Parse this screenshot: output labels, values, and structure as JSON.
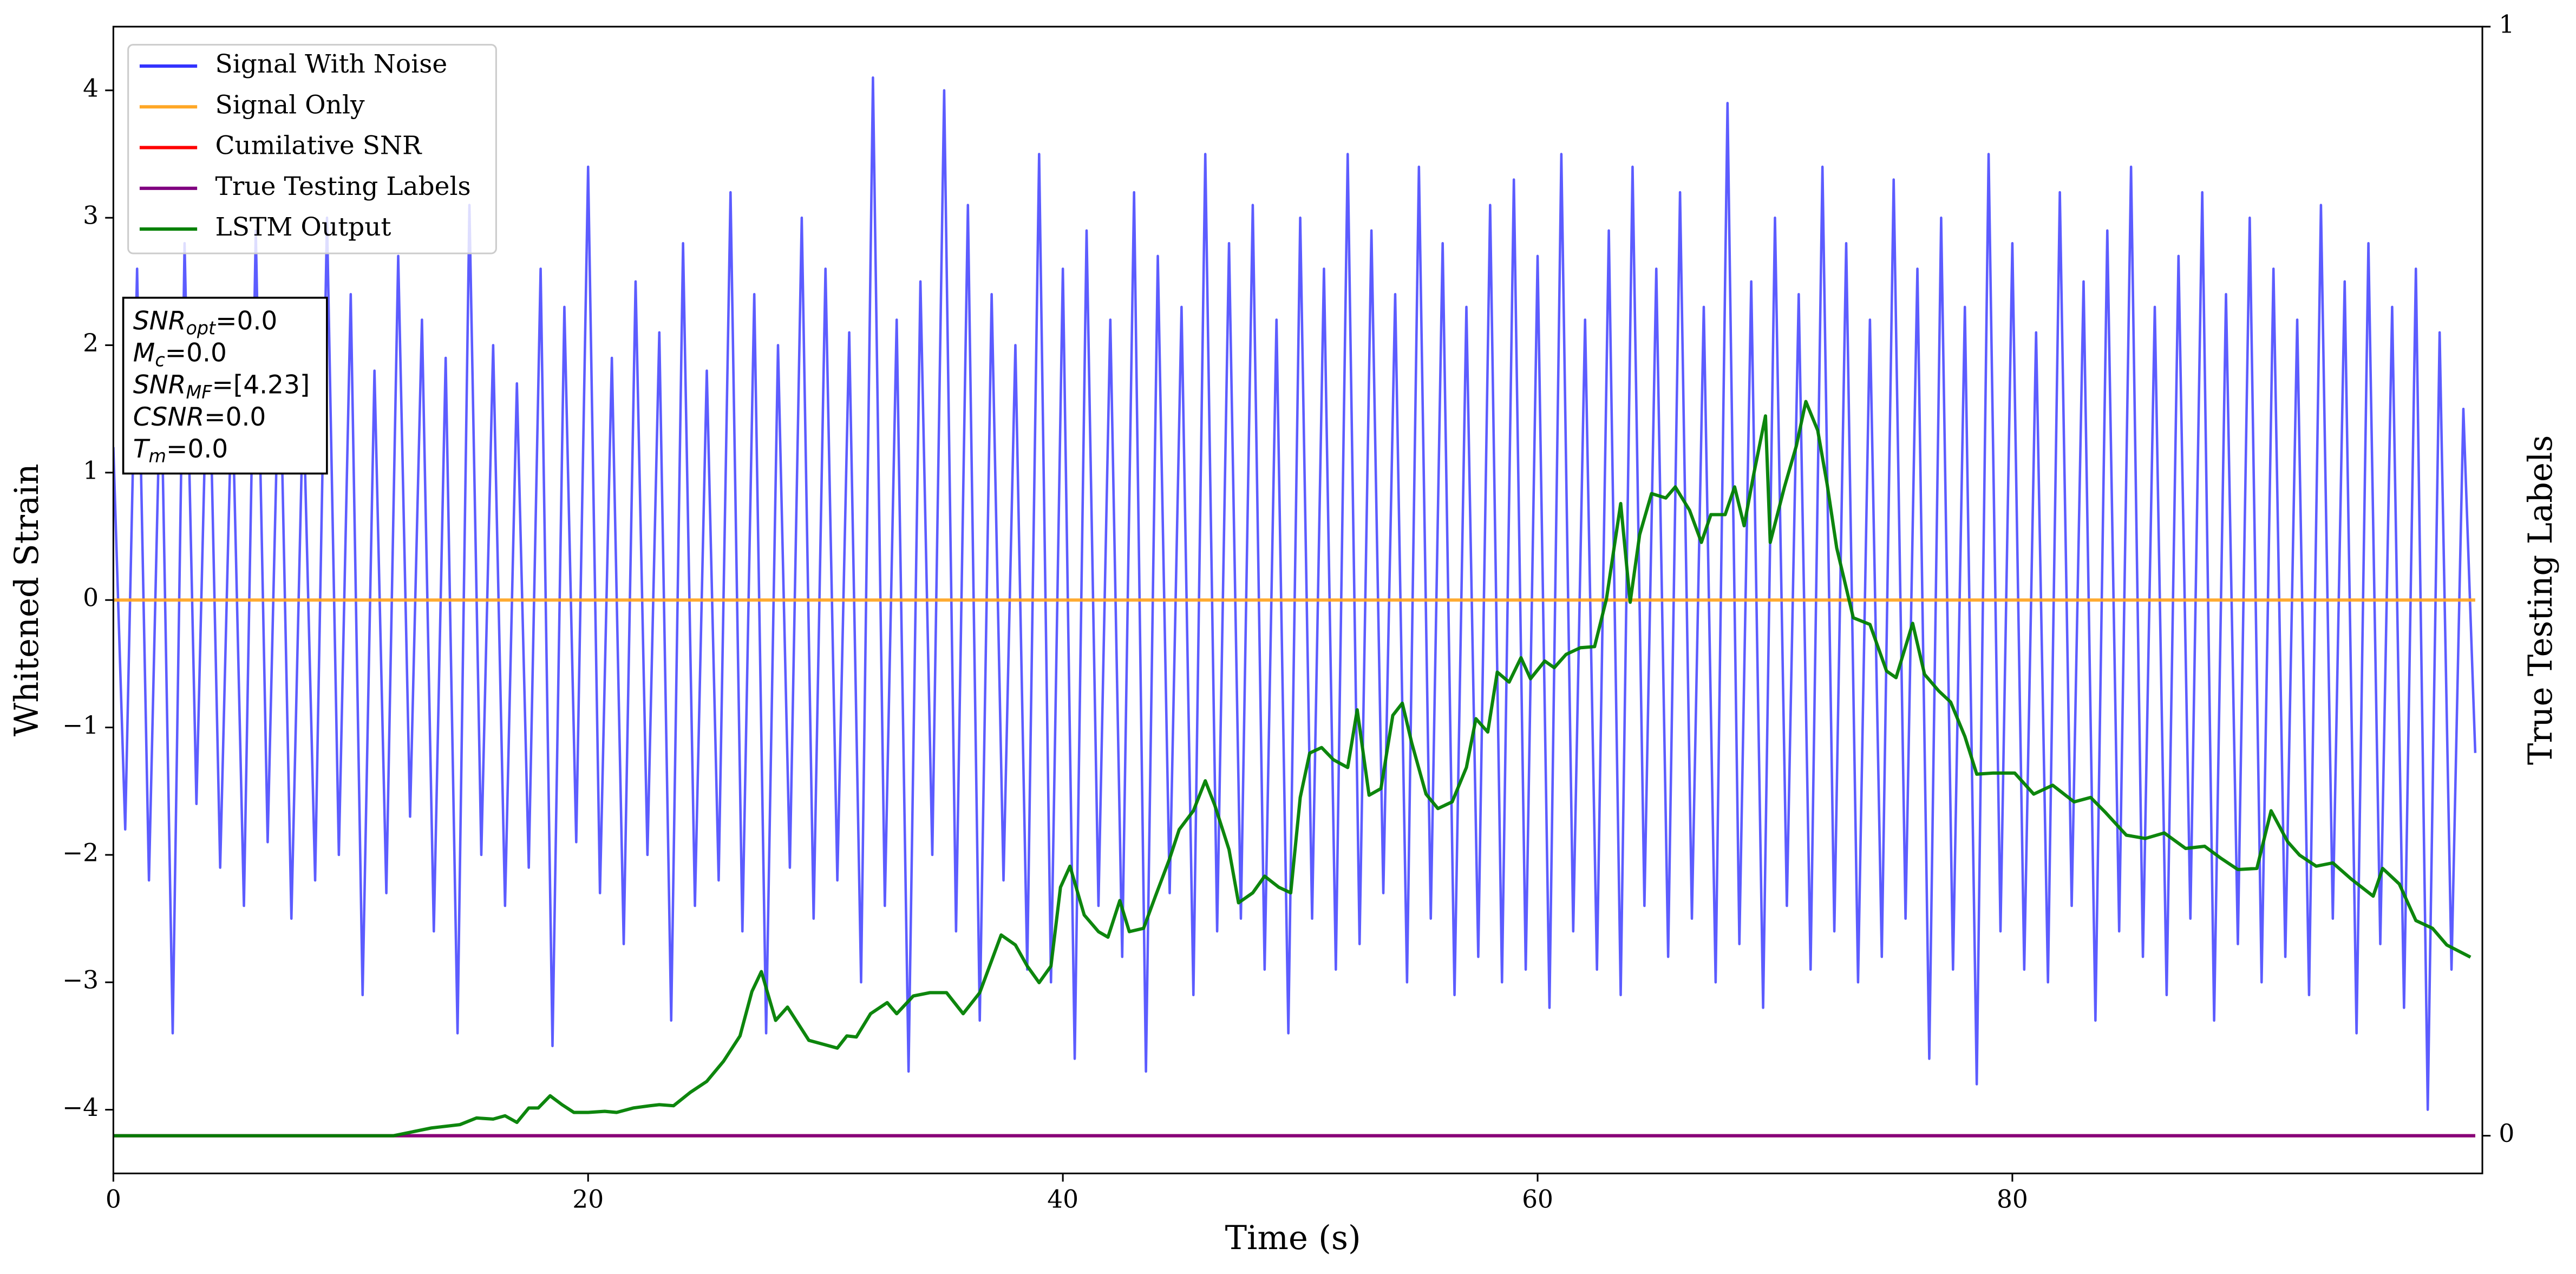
{
  "chart_data": {
    "type": "line",
    "xlabel": "Time (s)",
    "ylabel": "Whitened Strain",
    "y2label": "True Testing Labels",
    "xlim": [
      0,
      99.8
    ],
    "xticks": [
      0,
      20,
      40,
      60,
      80
    ],
    "ylim": [
      -4.5,
      4.5
    ],
    "yticks": [
      {
        "value": -4,
        "label": "−4"
      },
      {
        "value": -3,
        "label": "−3"
      },
      {
        "value": -2,
        "label": "−2"
      },
      {
        "value": -1,
        "label": "−1"
      },
      0,
      1,
      2,
      3,
      4
    ],
    "y2lim": [
      -0.034,
      1
    ],
    "y2ticks": [
      0,
      1
    ],
    "legend": "upper left",
    "series": [
      {
        "name": "Signal With Noise",
        "color": "#3333ff",
        "x": [
          0,
          0.5,
          1,
          1.5,
          2,
          2.5,
          3,
          3.5,
          4,
          4.5,
          5,
          5.5,
          6,
          6.5,
          7,
          7.5,
          8,
          8.5,
          9,
          9.5,
          10,
          10.5,
          11,
          11.5,
          12,
          12.5,
          13,
          13.5,
          14,
          14.5,
          15,
          15.5,
          16,
          16.5,
          17,
          17.5,
          18,
          18.5,
          19,
          19.5,
          20,
          20.5,
          21,
          21.5,
          22,
          22.5,
          23,
          23.5,
          24,
          24.5,
          25,
          25.5,
          26,
          26.5,
          27,
          27.5,
          28,
          28.5,
          29,
          29.5,
          30,
          30.5,
          31,
          31.5,
          32,
          32.5,
          33,
          33.5,
          34,
          34.5,
          35,
          35.5,
          36,
          36.5,
          37,
          37.5,
          38,
          38.5,
          39,
          39.5,
          40,
          40.5,
          41,
          41.5,
          42,
          42.5,
          43,
          43.5,
          44,
          44.5,
          45,
          45.5,
          46,
          46.5,
          47,
          47.5,
          48,
          48.5,
          49,
          49.5,
          50,
          50.5,
          51,
          51.5,
          52,
          52.5,
          53,
          53.5,
          54,
          54.5,
          55,
          55.5,
          56,
          56.5,
          57,
          57.5,
          58,
          58.5,
          59,
          59.5,
          60,
          60.5,
          61,
          61.5,
          62,
          62.5,
          63,
          63.5,
          64,
          64.5,
          65,
          65.5,
          66,
          66.5,
          67,
          67.5,
          68,
          68.5,
          69,
          69.5,
          70,
          70.5,
          71,
          71.5,
          72,
          72.5,
          73,
          73.5,
          74,
          74.5,
          75,
          75.5,
          76,
          76.5,
          77,
          77.5,
          78,
          78.5,
          79,
          79.5,
          80,
          80.5,
          81,
          81.5,
          82,
          82.5,
          83,
          83.5,
          84,
          84.5,
          85,
          85.5,
          86,
          86.5,
          87,
          87.5,
          88,
          88.5,
          89,
          89.5,
          90,
          90.5,
          91,
          91.5,
          92,
          92.5,
          93,
          93.5,
          94,
          94.5,
          95,
          95.5,
          96,
          96.5,
          97,
          97.5,
          98,
          98.5,
          99,
          99.5
        ],
        "values": [
          1.2,
          -1.8,
          2.6,
          -2.2,
          1.9,
          -3.4,
          2.8,
          -1.6,
          2.3,
          -2.1,
          1.7,
          -2.4,
          2.9,
          -1.9,
          2.1,
          -2.5,
          1.6,
          -2.2,
          3.0,
          -2.0,
          2.4,
          -3.1,
          1.8,
          -2.3,
          2.7,
          -1.7,
          2.2,
          -2.6,
          1.9,
          -3.4,
          3.1,
          -2.0,
          2.0,
          -2.4,
          1.7,
          -2.1,
          2.6,
          -3.5,
          2.3,
          -1.9,
          3.4,
          -2.3,
          1.9,
          -2.7,
          2.5,
          -2.0,
          2.1,
          -3.3,
          2.8,
          -2.4,
          1.8,
          -2.2,
          3.2,
          -2.6,
          2.4,
          -3.4,
          2.0,
          -2.1,
          3.0,
          -2.5,
          2.6,
          -2.2,
          2.1,
          -3.0,
          4.1,
          -2.4,
          2.2,
          -3.7,
          2.5,
          -2.0,
          4.0,
          -2.6,
          3.1,
          -3.3,
          2.4,
          -2.2,
          2.0,
          -2.9,
          3.5,
          -3.0,
          2.6,
          -3.6,
          2.9,
          -2.4,
          2.2,
          -2.8,
          3.2,
          -3.7,
          2.7,
          -2.3,
          2.3,
          -3.1,
          3.5,
          -2.6,
          2.8,
          -2.5,
          3.1,
          -2.9,
          2.2,
          -3.4,
          3.0,
          -2.5,
          2.6,
          -2.9,
          3.5,
          -2.7,
          2.9,
          -2.3,
          2.4,
          -3.0,
          3.4,
          -2.5,
          2.8,
          -3.1,
          2.3,
          -2.8,
          3.1,
          -3.0,
          3.3,
          -2.9,
          2.7,
          -3.2,
          3.5,
          -2.6,
          2.2,
          -2.9,
          2.9,
          -3.1,
          3.4,
          -2.4,
          2.6,
          -2.8,
          3.2,
          -2.5,
          2.3,
          -3.0,
          3.9,
          -2.7,
          2.5,
          -3.2,
          3.0,
          -2.4,
          2.4,
          -2.9,
          3.4,
          -2.6,
          2.8,
          -3.0,
          2.2,
          -2.8,
          3.3,
          -2.5,
          2.6,
          -3.6,
          3.0,
          -2.9,
          2.3,
          -3.8,
          3.5,
          -2.6,
          2.8,
          -2.9,
          2.1,
          -3.0,
          3.2,
          -2.4,
          2.5,
          -3.3,
          2.9,
          -2.6,
          3.4,
          -2.8,
          2.3,
          -3.1,
          2.7,
          -2.5,
          3.2,
          -3.3,
          2.4,
          -2.7,
          3.0,
          -3.0,
          2.6,
          -2.8,
          2.2,
          -3.1,
          3.1,
          -2.5,
          2.5,
          -3.4,
          2.8,
          -2.7,
          2.3,
          -3.2,
          2.6,
          -4.0,
          2.1,
          -2.9,
          1.5,
          -1.2
        ]
      },
      {
        "name": "Signal Only",
        "color": "#ffa726",
        "x": [
          0,
          99.5
        ],
        "values": [
          0,
          0
        ]
      },
      {
        "name": "Cumilative SNR",
        "color": "#ff0000",
        "axis": "y2",
        "x": [
          0,
          99.5
        ],
        "values": [
          0,
          0
        ]
      },
      {
        "name": "True Testing Labels",
        "color": "#800080",
        "axis": "y2",
        "x": [
          0,
          99.5
        ],
        "values": [
          0,
          0
        ]
      },
      {
        "name": "LSTM Output",
        "color": "#008000",
        "axis": "y2",
        "x": [
          0,
          11.8,
          13.4,
          14.6,
          15.3,
          16.0,
          16.5,
          17.0,
          17.5,
          17.9,
          18.4,
          18.9,
          19.4,
          20.0,
          20.7,
          21.2,
          21.9,
          22.6,
          23.0,
          23.6,
          24.3,
          25.0,
          25.7,
          26.4,
          26.9,
          27.3,
          27.9,
          28.4,
          29.3,
          30.5,
          30.9,
          31.3,
          31.9,
          32.6,
          33.0,
          33.7,
          34.4,
          35.1,
          35.8,
          36.5,
          37.4,
          38.0,
          38.5,
          39.0,
          39.5,
          39.9,
          40.3,
          40.9,
          41.5,
          41.9,
          42.4,
          42.8,
          43.4,
          43.9,
          44.5,
          44.9,
          45.5,
          46.0,
          46.4,
          47.0,
          47.4,
          48.0,
          48.5,
          49.1,
          49.6,
          50.0,
          50.4,
          50.9,
          51.4,
          52.0,
          52.4,
          52.9,
          53.4,
          53.9,
          54.3,
          54.7,
          55.3,
          55.8,
          56.4,
          57.0,
          57.4,
          57.9,
          58.3,
          58.8,
          59.3,
          59.7,
          60.3,
          60.7,
          61.2,
          61.8,
          62.4,
          62.9,
          63.5,
          63.9,
          64.3,
          64.8,
          65.4,
          65.8,
          66.4,
          66.9,
          67.3,
          67.9,
          68.3,
          68.7,
          69.1,
          69.6,
          69.8,
          70.4,
          70.9,
          71.3,
          71.8,
          72.2,
          72.6,
          73.3,
          74.0,
          74.7,
          75.1,
          75.8,
          76.3,
          76.9,
          77.4,
          78.0,
          78.5,
          79.2,
          80.1,
          80.9,
          81.7,
          82.6,
          83.3,
          83.9,
          84.8,
          85.6,
          86.4,
          87.3,
          88.1,
          88.8,
          89.5,
          90.3,
          90.9,
          91.6,
          92.1,
          92.8,
          93.5,
          94.3,
          95.2,
          95.6,
          96.3,
          97.0,
          97.7,
          98.3,
          99.3
        ],
        "values": [
          0,
          0,
          0.007,
          0.01,
          0.016,
          0.015,
          0.018,
          0.012,
          0.025,
          0.025,
          0.036,
          0.028,
          0.021,
          0.021,
          0.022,
          0.021,
          0.025,
          0.027,
          0.028,
          0.027,
          0.039,
          0.049,
          0.067,
          0.09,
          0.13,
          0.148,
          0.104,
          0.116,
          0.086,
          0.079,
          0.09,
          0.089,
          0.11,
          0.12,
          0.11,
          0.126,
          0.129,
          0.129,
          0.11,
          0.129,
          0.181,
          0.172,
          0.153,
          0.138,
          0.153,
          0.224,
          0.243,
          0.199,
          0.184,
          0.179,
          0.212,
          0.184,
          0.187,
          0.216,
          0.25,
          0.276,
          0.293,
          0.32,
          0.298,
          0.258,
          0.21,
          0.219,
          0.234,
          0.224,
          0.219,
          0.305,
          0.345,
          0.35,
          0.339,
          0.332,
          0.384,
          0.307,
          0.313,
          0.379,
          0.39,
          0.354,
          0.308,
          0.295,
          0.301,
          0.332,
          0.376,
          0.364,
          0.418,
          0.409,
          0.431,
          0.412,
          0.428,
          0.422,
          0.434,
          0.44,
          0.441,
          0.484,
          0.57,
          0.481,
          0.542,
          0.579,
          0.575,
          0.585,
          0.564,
          0.535,
          0.56,
          0.56,
          0.585,
          0.55,
          0.596,
          0.649,
          0.535,
          0.585,
          0.622,
          0.662,
          0.636,
          0.587,
          0.53,
          0.467,
          0.461,
          0.419,
          0.413,
          0.462,
          0.416,
          0.401,
          0.391,
          0.36,
          0.326,
          0.327,
          0.327,
          0.308,
          0.316,
          0.301,
          0.305,
          0.292,
          0.271,
          0.268,
          0.273,
          0.259,
          0.261,
          0.25,
          0.24,
          0.241,
          0.293,
          0.265,
          0.253,
          0.243,
          0.246,
          0.231,
          0.216,
          0.241,
          0.227,
          0.194,
          0.187,
          0.172,
          0.161
        ]
      }
    ],
    "annotation": [
      {
        "base": "SNR",
        "sub": "opt",
        "rest": "=0.0"
      },
      {
        "base": "M",
        "sub": "c",
        "rest": "=0.0"
      },
      {
        "base": "SNR",
        "sub": "MF",
        "rest": "=[4.23]"
      },
      {
        "base": "CSNR",
        "sub": "",
        "rest": "=0.0"
      },
      {
        "base": "T",
        "sub": "m",
        "rest": "=0.0"
      }
    ]
  }
}
